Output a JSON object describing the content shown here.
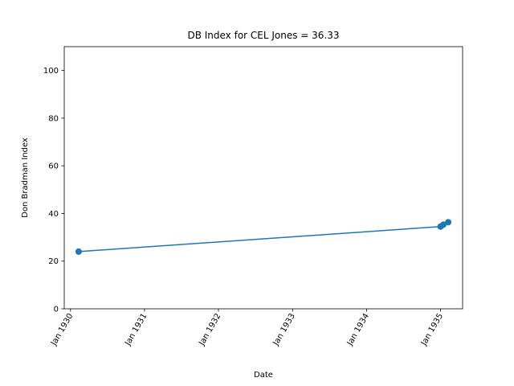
{
  "chart_data": {
    "type": "line",
    "title": "DB Index for CEL Jones = 36.33",
    "xlabel": "Date",
    "ylabel": "Don Bradman Index",
    "x_type": "date",
    "xlim": [
      "1929-12-01",
      "1935-04-20"
    ],
    "ylim": [
      0,
      110
    ],
    "yticks": [
      0,
      20,
      40,
      60,
      80,
      100
    ],
    "xticks": [
      {
        "date": "1930-01-01",
        "label": "Jan 1930"
      },
      {
        "date": "1931-01-01",
        "label": "Jan 1931"
      },
      {
        "date": "1932-01-01",
        "label": "Jan 1932"
      },
      {
        "date": "1933-01-01",
        "label": "Jan 1933"
      },
      {
        "date": "1934-01-01",
        "label": "Jan 1934"
      },
      {
        "date": "1935-01-01",
        "label": "Jan 1935"
      }
    ],
    "grid": false,
    "series": [
      {
        "color": "#1f77b4",
        "marker": "circle",
        "points": [
          {
            "x": "1930-02-10",
            "y": 24.0
          },
          {
            "x": "1935-01-01",
            "y": 34.5
          },
          {
            "x": "1935-01-15",
            "y": 35.3
          },
          {
            "x": "1935-02-08",
            "y": 36.33
          }
        ]
      }
    ]
  }
}
